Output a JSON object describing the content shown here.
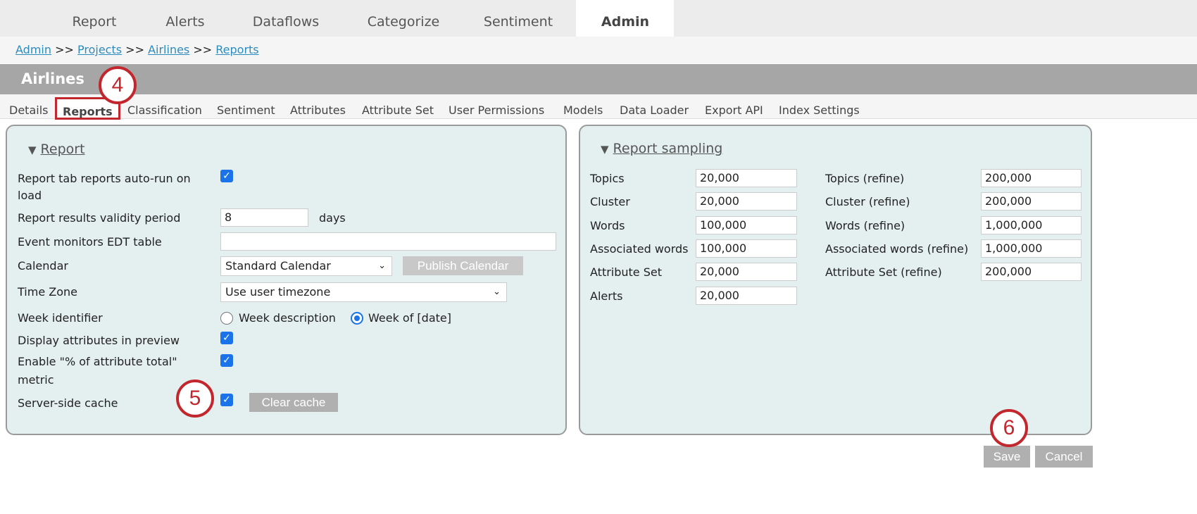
{
  "top_tabs": [
    "Report",
    "Alerts",
    "Dataflows",
    "Categorize",
    "Sentiment",
    "Admin"
  ],
  "active_top_tab": "Admin",
  "breadcrumb": {
    "items": [
      "Admin",
      "Projects",
      "Airlines",
      "Reports"
    ],
    "sep": ">>"
  },
  "project_title": "Airlines",
  "sub_tabs": [
    "Details",
    "Reports",
    "Classification",
    "Sentiment",
    "Attributes",
    "Attribute Set",
    "User Permissions",
    "Models",
    "Data Loader",
    "Export API",
    "Index Settings"
  ],
  "active_sub_tab": "Reports",
  "report": {
    "title": "Report",
    "autorun_label": "Report tab reports auto-run on",
    "autorun_label2": "load",
    "autorun_checked": true,
    "validity_label": "Report results validity period",
    "validity_value": "8",
    "validity_unit": "days",
    "edt_label": "Event monitors EDT table",
    "edt_value": "",
    "calendar_label": "Calendar",
    "calendar_value": "Standard Calendar",
    "publish_label": "Publish Calendar",
    "timezone_label": "Time Zone",
    "timezone_value": "Use user timezone",
    "week_label": "Week identifier",
    "week_opt1": "Week description",
    "week_opt2": "Week of [date]",
    "week_selected": "Week of [date]",
    "display_attr_label": "Display attributes in preview",
    "pct_label": "Enable \"% of attribute total\"",
    "pct_label2": "metric",
    "cache_label": "Server-side cache",
    "clear_cache_label": "Clear cache"
  },
  "sampling": {
    "title": "Report sampling",
    "left": [
      {
        "label": "Topics",
        "value": "20,000"
      },
      {
        "label": "Cluster",
        "value": "20,000"
      },
      {
        "label": "Words",
        "value": "100,000"
      },
      {
        "label": "Associated words",
        "value": "100,000"
      },
      {
        "label": "Attribute Set",
        "value": "20,000"
      },
      {
        "label": "Alerts",
        "value": "20,000"
      }
    ],
    "right": [
      {
        "label": "Topics (refine)",
        "value": "200,000"
      },
      {
        "label": "Cluster (refine)",
        "value": "200,000"
      },
      {
        "label": "Words (refine)",
        "value": "1,000,000"
      },
      {
        "label": "Associated words (refine)",
        "value": "1,000,000"
      },
      {
        "label": "Attribute Set (refine)",
        "value": "200,000"
      }
    ]
  },
  "actions": {
    "save": "Save",
    "cancel": "Cancel"
  },
  "annotations": [
    "4",
    "5",
    "6"
  ],
  "colors": {
    "annotation": "#c1272d",
    "link": "#2d8bbd",
    "checkbox": "#1a73e8",
    "panel": "#e4f0f0"
  }
}
